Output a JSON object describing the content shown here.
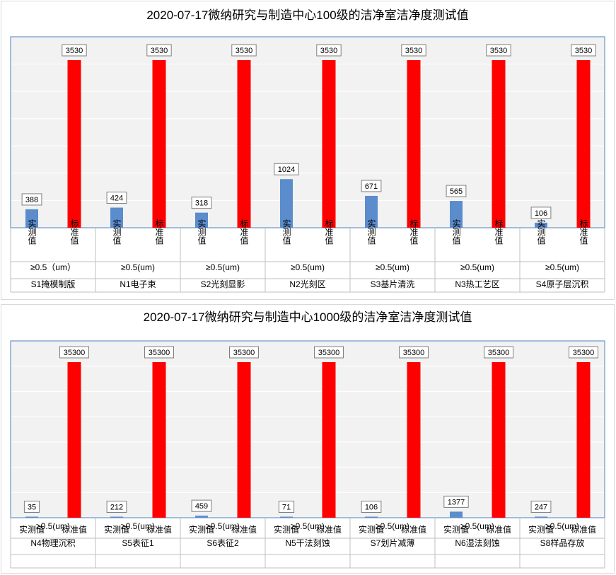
{
  "colors": {
    "measured": "#5b8ccc",
    "standard": "#ff0000",
    "plot_bg": "#f2f2f2",
    "plot_border": "#4f81bd",
    "grid": "#ffffff"
  },
  "chart_data": [
    {
      "type": "bar",
      "title": "2020-07-17微纳研究与制造中心100级的洁净室洁净度测试值",
      "series_labels": [
        "实测值",
        "标准值"
      ],
      "particle_labels": [
        "≥0.5（um）",
        "≥0.5(um)",
        "≥0.5(um)",
        "≥0.5(um)",
        "≥0.5(um)",
        "≥0.5(um)",
        "≥0.5(um)"
      ],
      "categories": [
        "S1掩模制版",
        "N1电子束",
        "S2光刻显影",
        "N2光刻区",
        "S3基片清洗",
        "N3热工艺区",
        "S4原子层沉积"
      ],
      "series": [
        {
          "values": [
            388,
            424,
            318,
            1024,
            671,
            565,
            106
          ]
        },
        {
          "values": [
            3530,
            3530,
            3530,
            3530,
            3530,
            3530,
            3530
          ]
        }
      ],
      "ylim": [
        0,
        3530
      ],
      "grid": true
    },
    {
      "type": "bar",
      "title": "2020-07-17微纳研究与制造中心1000级的洁净室洁净度测试值",
      "series_labels": [
        "实测值",
        "标准值"
      ],
      "particle_labels": [
        "≥0.5(um)",
        "≥0.5(um)",
        "≥0.5(um)",
        "≥0.5(um)",
        "≥0.5(um)",
        "≥0.5(um)",
        "≥0.5(um)"
      ],
      "categories": [
        "N4物理沉积",
        "S5表征1",
        "S6表征2",
        "N5干法刻蚀",
        "S7划片减薄",
        "N6湿法刻蚀",
        "S8样品存放"
      ],
      "series": [
        {
          "values": [
            35,
            212,
            459,
            71,
            106,
            1377,
            247
          ]
        },
        {
          "values": [
            35300,
            35300,
            35300,
            35300,
            35300,
            35300,
            35300
          ]
        }
      ],
      "ylim": [
        0,
        35300
      ],
      "grid": true
    }
  ]
}
